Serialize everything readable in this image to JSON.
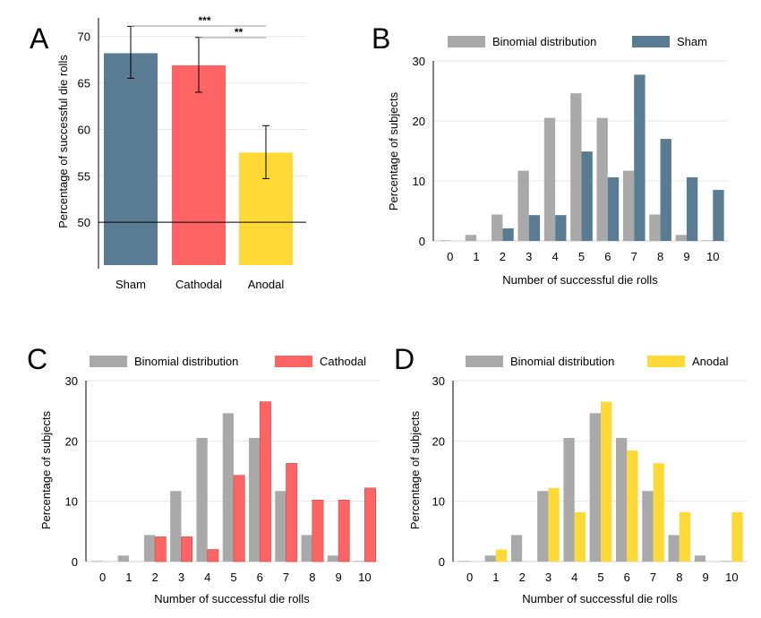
{
  "colors": {
    "binomial": "#a9a9a9",
    "sham": "#5a7c93",
    "cathodal": "#ff6464",
    "anodal": "#ffd936",
    "grid": "#e6e6e6"
  },
  "chart_data": [
    {
      "panel": "A",
      "type": "bar",
      "categories": [
        "Sham",
        "Cathodal",
        "Anodal"
      ],
      "values": [
        68.2,
        66.9,
        57.5
      ],
      "error": [
        [
          65.5,
          71.1
        ],
        [
          64.0,
          69.9
        ],
        [
          54.7,
          60.4
        ]
      ],
      "ylabel": "Percentage of successful die rolls",
      "yticks": [
        50,
        55,
        60,
        65,
        70
      ],
      "ylim": [
        45,
        72
      ],
      "reference_line": 50,
      "significance": [
        {
          "from": "Sham",
          "to": "Anodal",
          "label": "***"
        },
        {
          "from": "Cathodal",
          "to": "Anodal",
          "label": "**"
        }
      ],
      "colors": [
        "#5a7c93",
        "#ff6464",
        "#ffd936"
      ]
    },
    {
      "panel": "B",
      "type": "bar",
      "categories": [
        "0",
        "1",
        "2",
        "3",
        "4",
        "5",
        "6",
        "7",
        "8",
        "9",
        "10"
      ],
      "series": [
        {
          "name": "Binomial distribution",
          "values": [
            0.1,
            1.0,
            4.4,
            11.7,
            20.5,
            24.6,
            20.5,
            11.7,
            4.4,
            1.0,
            0.1
          ]
        },
        {
          "name": "Sham",
          "values": [
            0,
            0,
            2.1,
            4.3,
            4.3,
            14.9,
            10.6,
            27.7,
            17.0,
            10.6,
            8.5
          ]
        }
      ],
      "xlabel": "Number of successful die rolls",
      "ylabel": "Percentage of subjects",
      "yticks": [
        0,
        10,
        20,
        30
      ],
      "ylim": [
        0,
        30
      ],
      "legend": "top",
      "grid": true
    },
    {
      "panel": "C",
      "type": "bar",
      "categories": [
        "0",
        "1",
        "2",
        "3",
        "4",
        "5",
        "6",
        "7",
        "8",
        "9",
        "10"
      ],
      "series": [
        {
          "name": "Binomial distribution",
          "values": [
            0.1,
            1.0,
            4.4,
            11.7,
            20.5,
            24.6,
            20.5,
            11.7,
            4.4,
            1.0,
            0.1
          ]
        },
        {
          "name": "Cathodal",
          "values": [
            0,
            0,
            4.1,
            4.1,
            2.0,
            14.3,
            26.5,
            16.3,
            10.2,
            10.2,
            12.2
          ]
        }
      ],
      "xlabel": "Number of successful die rolls",
      "ylabel": "Percentage of subjects",
      "yticks": [
        0,
        10,
        20,
        30
      ],
      "ylim": [
        0,
        30
      ],
      "legend": "top",
      "grid": true
    },
    {
      "panel": "D",
      "type": "bar",
      "categories": [
        "0",
        "1",
        "2",
        "3",
        "4",
        "5",
        "6",
        "7",
        "8",
        "9",
        "10"
      ],
      "series": [
        {
          "name": "Binomial distribution",
          "values": [
            0.1,
            1.0,
            4.4,
            11.7,
            20.5,
            24.6,
            20.5,
            11.7,
            4.4,
            1.0,
            0.1
          ]
        },
        {
          "name": "Anodal",
          "values": [
            0,
            2.0,
            0,
            12.2,
            8.2,
            26.5,
            18.4,
            16.3,
            8.2,
            0,
            8.2
          ]
        }
      ],
      "xlabel": "Number of successful die rolls",
      "ylabel": "Percentage of subjects",
      "yticks": [
        0,
        10,
        20,
        30
      ],
      "ylim": [
        0,
        30
      ],
      "legend": "top",
      "grid": true
    }
  ]
}
